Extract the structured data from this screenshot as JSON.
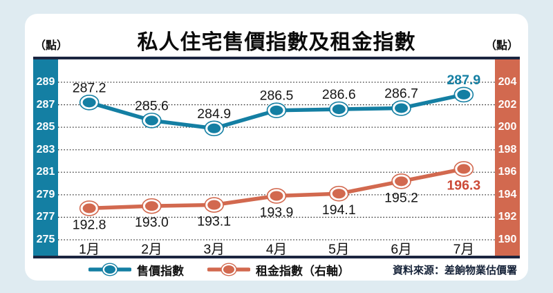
{
  "colors": {
    "background": "#dfebf1",
    "card": "#ffffff",
    "divider_navy": "#1b2540",
    "price_teal": "#147fa3",
    "rent_salmon": "#d2694f",
    "rent_highlight": "#cc4936",
    "gridline": "#333333"
  },
  "chart_data": {
    "type": "line",
    "title": "私人住宅售價指數及租金指數",
    "source": "資料來源：差餉物業估價署",
    "categories": [
      "1月",
      "2月",
      "3月",
      "4月",
      "5月",
      "6月",
      "7月"
    ],
    "left_axis": {
      "unit": "（點）",
      "min": 275,
      "max": 289,
      "ticks": [
        289,
        287,
        285,
        283,
        281,
        279,
        277,
        275
      ]
    },
    "right_axis": {
      "unit": "（點）",
      "min": 190,
      "max": 204,
      "ticks": [
        204,
        202,
        200,
        198,
        196,
        194,
        192,
        190
      ]
    },
    "grid": "dotted-horizontal",
    "legend_position": "bottom",
    "series": [
      {
        "name": "售價指數",
        "axis": "left",
        "color": "#147fa3",
        "values": [
          287.2,
          285.6,
          284.9,
          286.5,
          286.6,
          286.7,
          287.9
        ],
        "labels": [
          "287.2",
          "285.6",
          "284.9",
          "286.5",
          "286.6",
          "286.7",
          "287.9"
        ],
        "label_side": "above",
        "last_label_color": "#147fa3"
      },
      {
        "name": "租金指數（右軸）",
        "axis": "right",
        "color": "#d2694f",
        "values": [
          192.8,
          193.0,
          193.1,
          193.9,
          194.1,
          195.2,
          196.3
        ],
        "labels": [
          "192.8",
          "193.0",
          "193.1",
          "193.9",
          "194.1",
          "195.2",
          "196.3"
        ],
        "label_side": "below",
        "last_label_color": "#cc4936"
      }
    ]
  }
}
